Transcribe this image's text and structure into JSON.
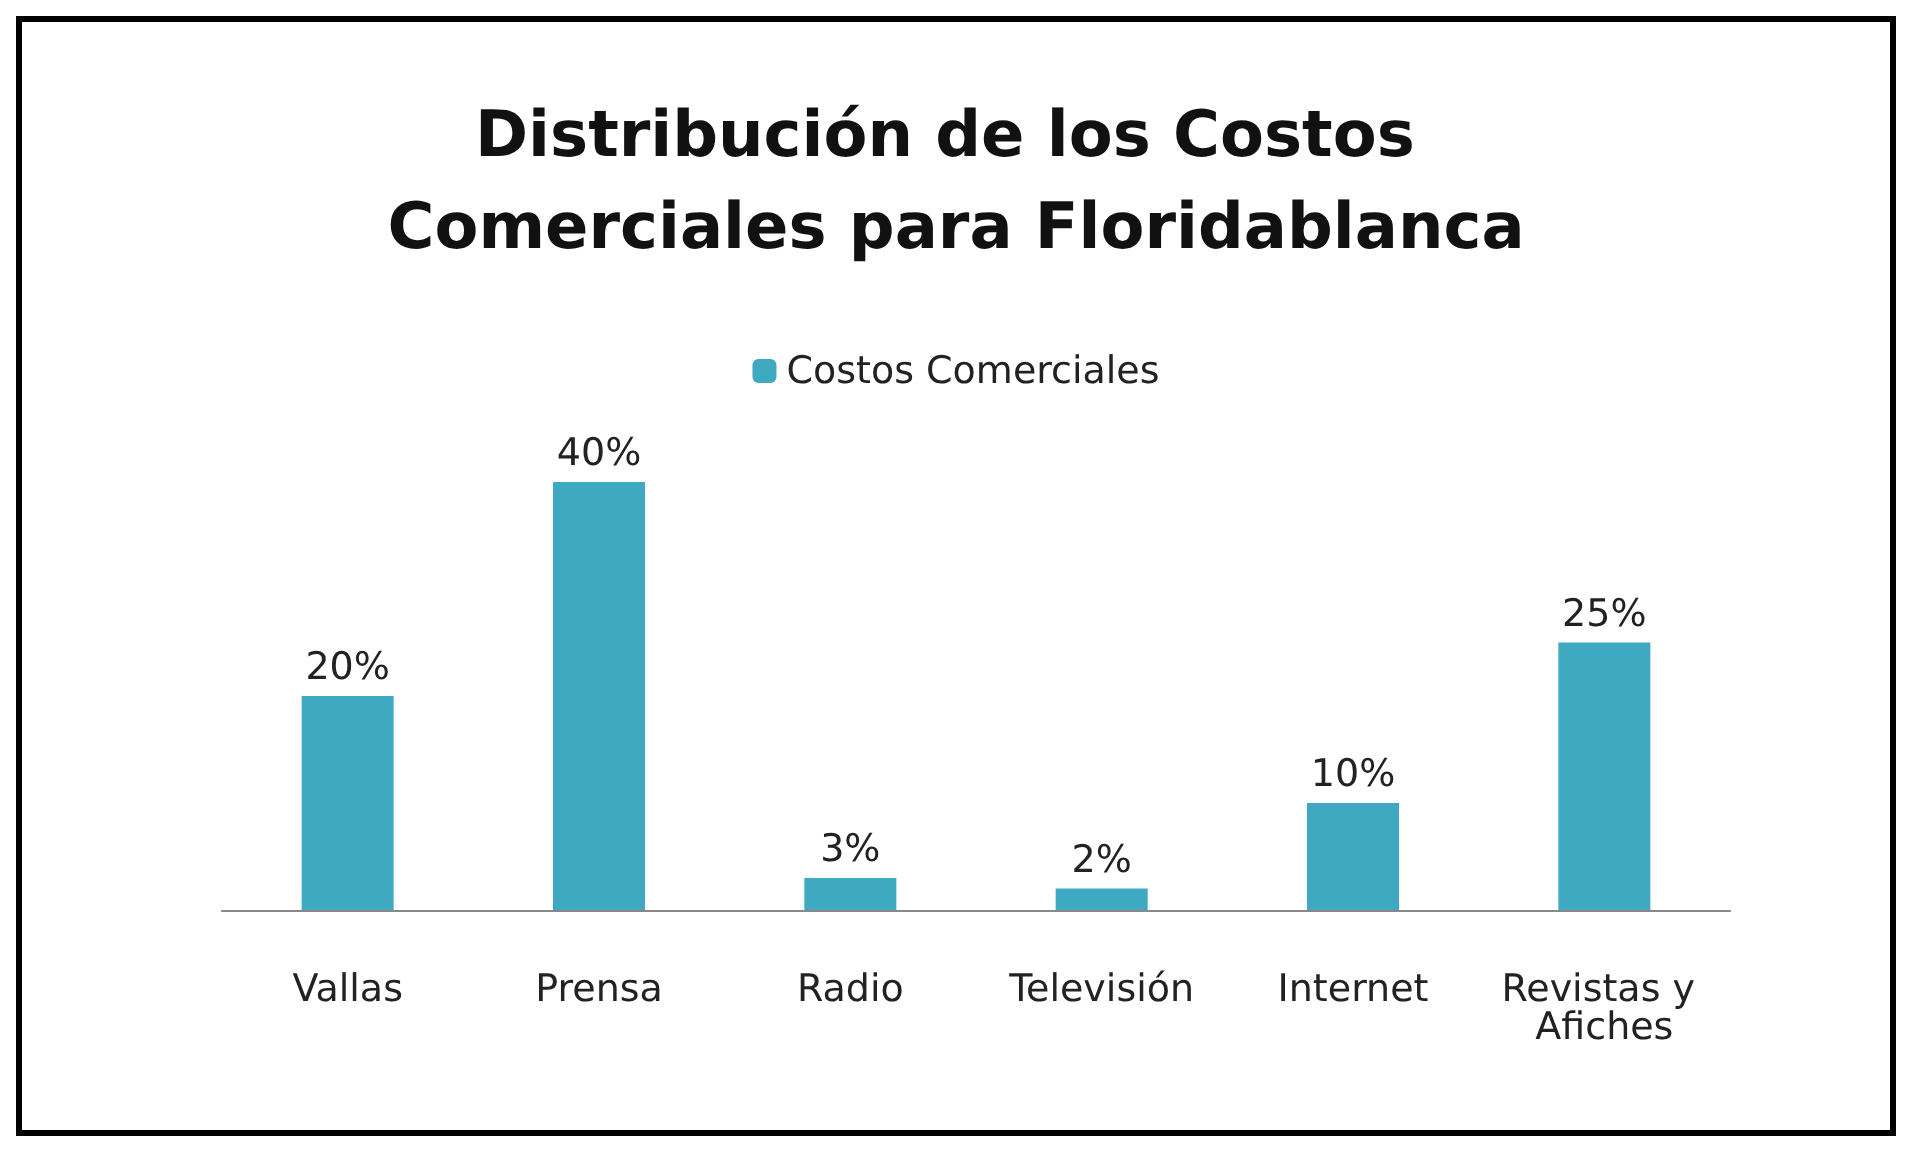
{
  "chart_data": {
    "type": "bar",
    "title": "Distribución de los Costos Comerciales para Floridablanca",
    "categories": [
      "Vallas",
      "Prensa",
      "Radio",
      "Televisión",
      "Internet",
      "Revistas y Afiches"
    ],
    "series": [
      {
        "name": "Costos Comerciales",
        "color": "#3fa9c1",
        "values": [
          20,
          40,
          3,
          2,
          10,
          25
        ],
        "value_labels": [
          "20%",
          "40%",
          "3%",
          "2%",
          "10%",
          "25%"
        ]
      }
    ],
    "legend": "top",
    "grid": false,
    "tick_labels": "x"
  }
}
